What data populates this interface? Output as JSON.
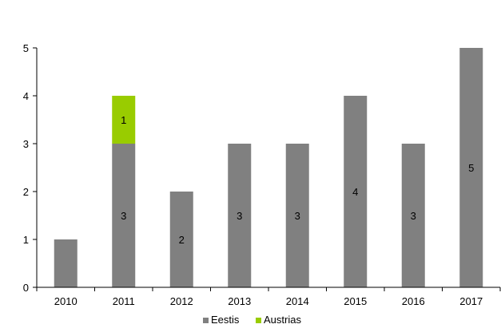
{
  "chart_data": {
    "type": "bar",
    "stacked": true,
    "categories": [
      "2010",
      "2011",
      "2012",
      "2013",
      "2014",
      "2015",
      "2016",
      "2017"
    ],
    "series": [
      {
        "name": "Eestis",
        "color": "#808080",
        "values": [
          1,
          3,
          2,
          3,
          3,
          4,
          3,
          5
        ],
        "labels": [
          "",
          "3",
          "2",
          "3",
          "3",
          "4",
          "3",
          "5"
        ]
      },
      {
        "name": "Austrias",
        "color": "#99cc00",
        "values": [
          0,
          1,
          0,
          0,
          0,
          0,
          0,
          0
        ],
        "labels": [
          "",
          "1",
          "",
          "",
          "",
          "",
          "",
          ""
        ]
      }
    ],
    "title": "",
    "xlabel": "",
    "ylabel": "",
    "ylim": [
      0,
      5
    ],
    "yticks": [
      0,
      1,
      2,
      3,
      4,
      5
    ],
    "grid": false,
    "legend": "bottom-center"
  }
}
